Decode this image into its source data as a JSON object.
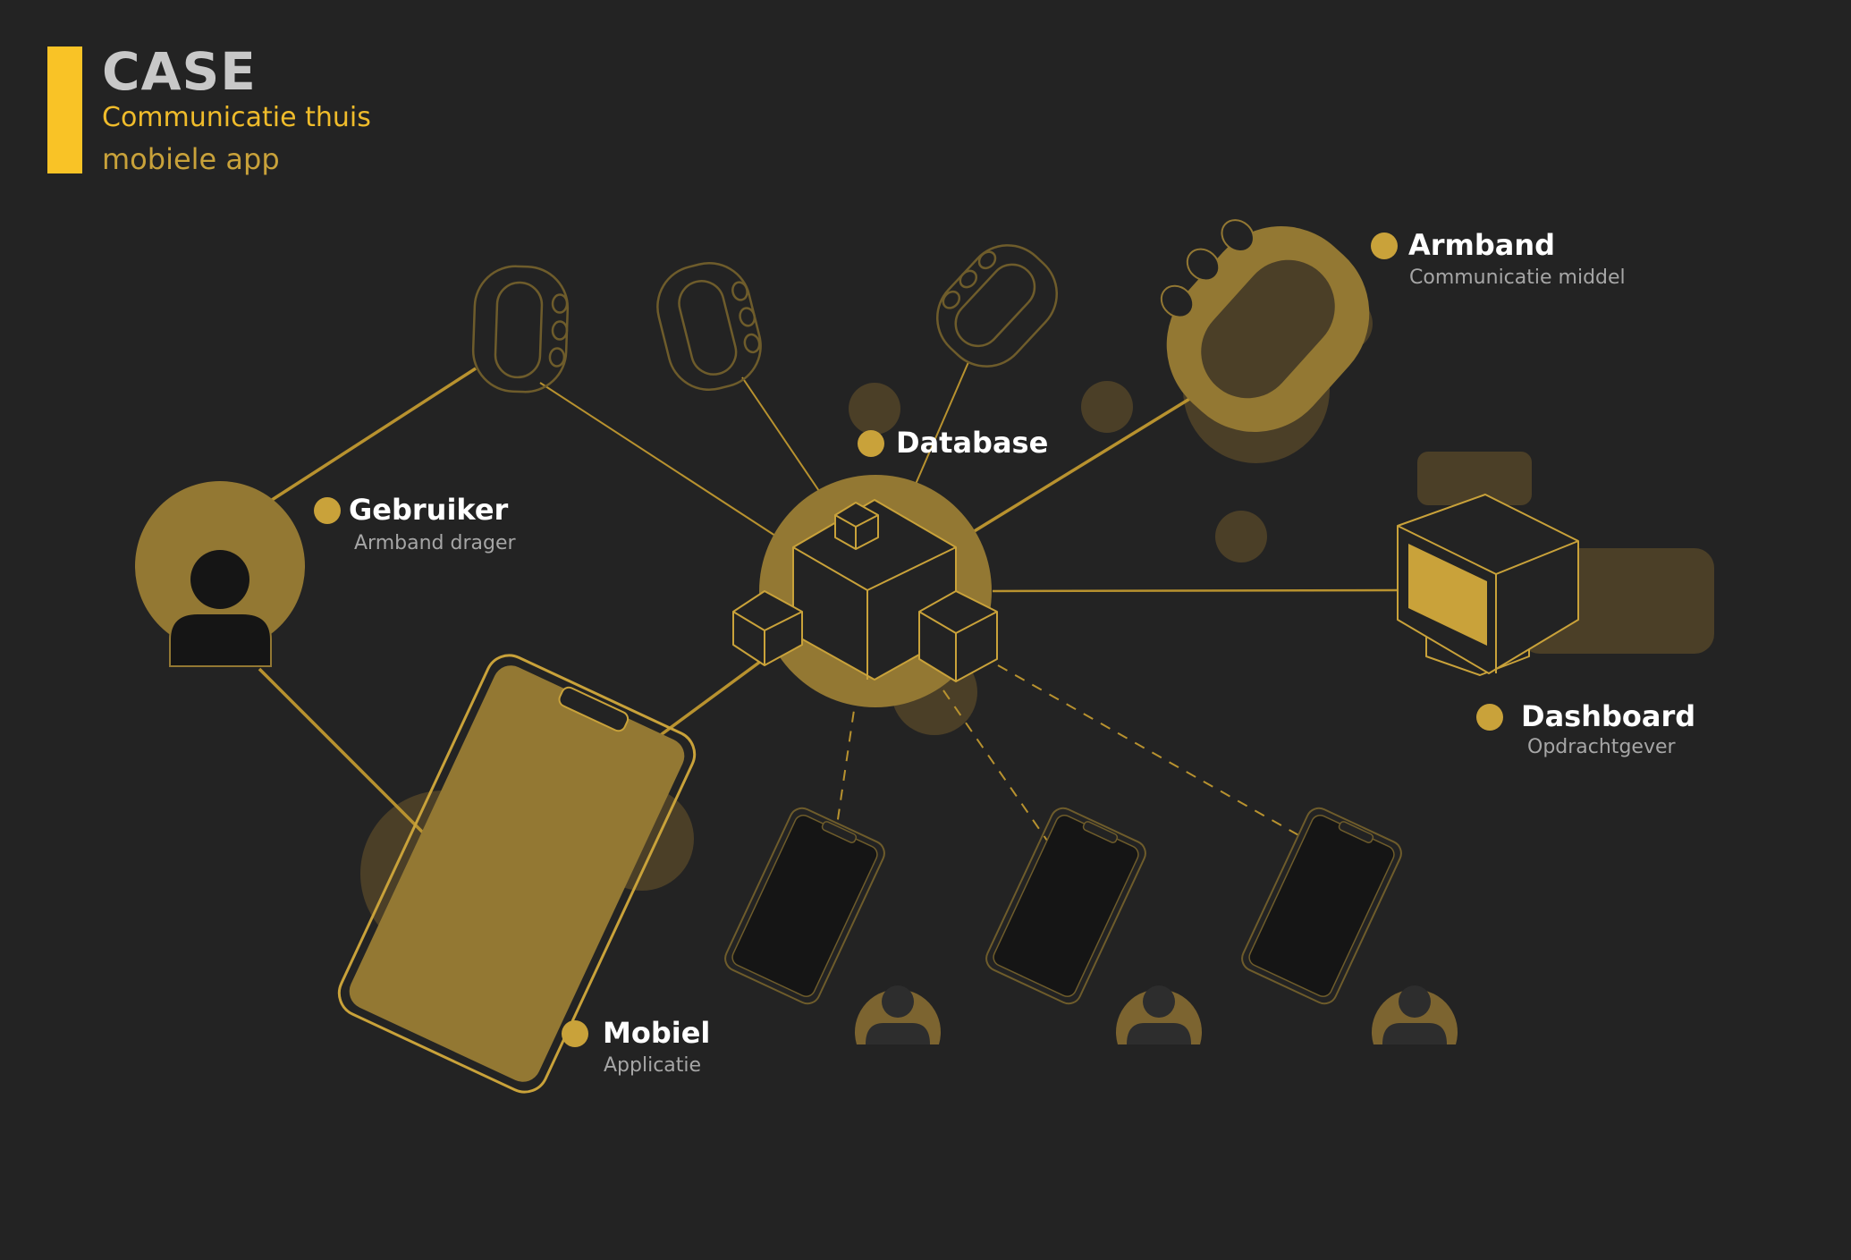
{
  "header": {
    "title": "CASE",
    "line1": "Communicatie thuis",
    "line2": "mobiele app"
  },
  "nodes": {
    "gebruiker": {
      "title": "Gebruiker",
      "subtitle": "Armband drager"
    },
    "database": {
      "title": "Database"
    },
    "armband": {
      "title": "Armband",
      "subtitle": "Communicatie middel"
    },
    "dashboard": {
      "title": "Dashboard",
      "subtitle": "Opdrachtgever"
    },
    "mobiel": {
      "title": "Mobiel",
      "subtitle": "Applicatie"
    }
  },
  "colors": {
    "background": "#232323",
    "accent": "#F9C326",
    "gold": "#C9A23A",
    "gold_fill": "#937833",
    "line": "#B8922F",
    "outline": "#6E5C2B",
    "bubble": "#4B3F27",
    "dark": "#151515",
    "person_light": "#2D2D2D"
  },
  "icons": {
    "user": "user-icon",
    "database": "database-cubes-icon",
    "bracelet": "bracelet-icon",
    "dashboard": "dashboard-box-icon",
    "phone": "smartphone-icon"
  }
}
